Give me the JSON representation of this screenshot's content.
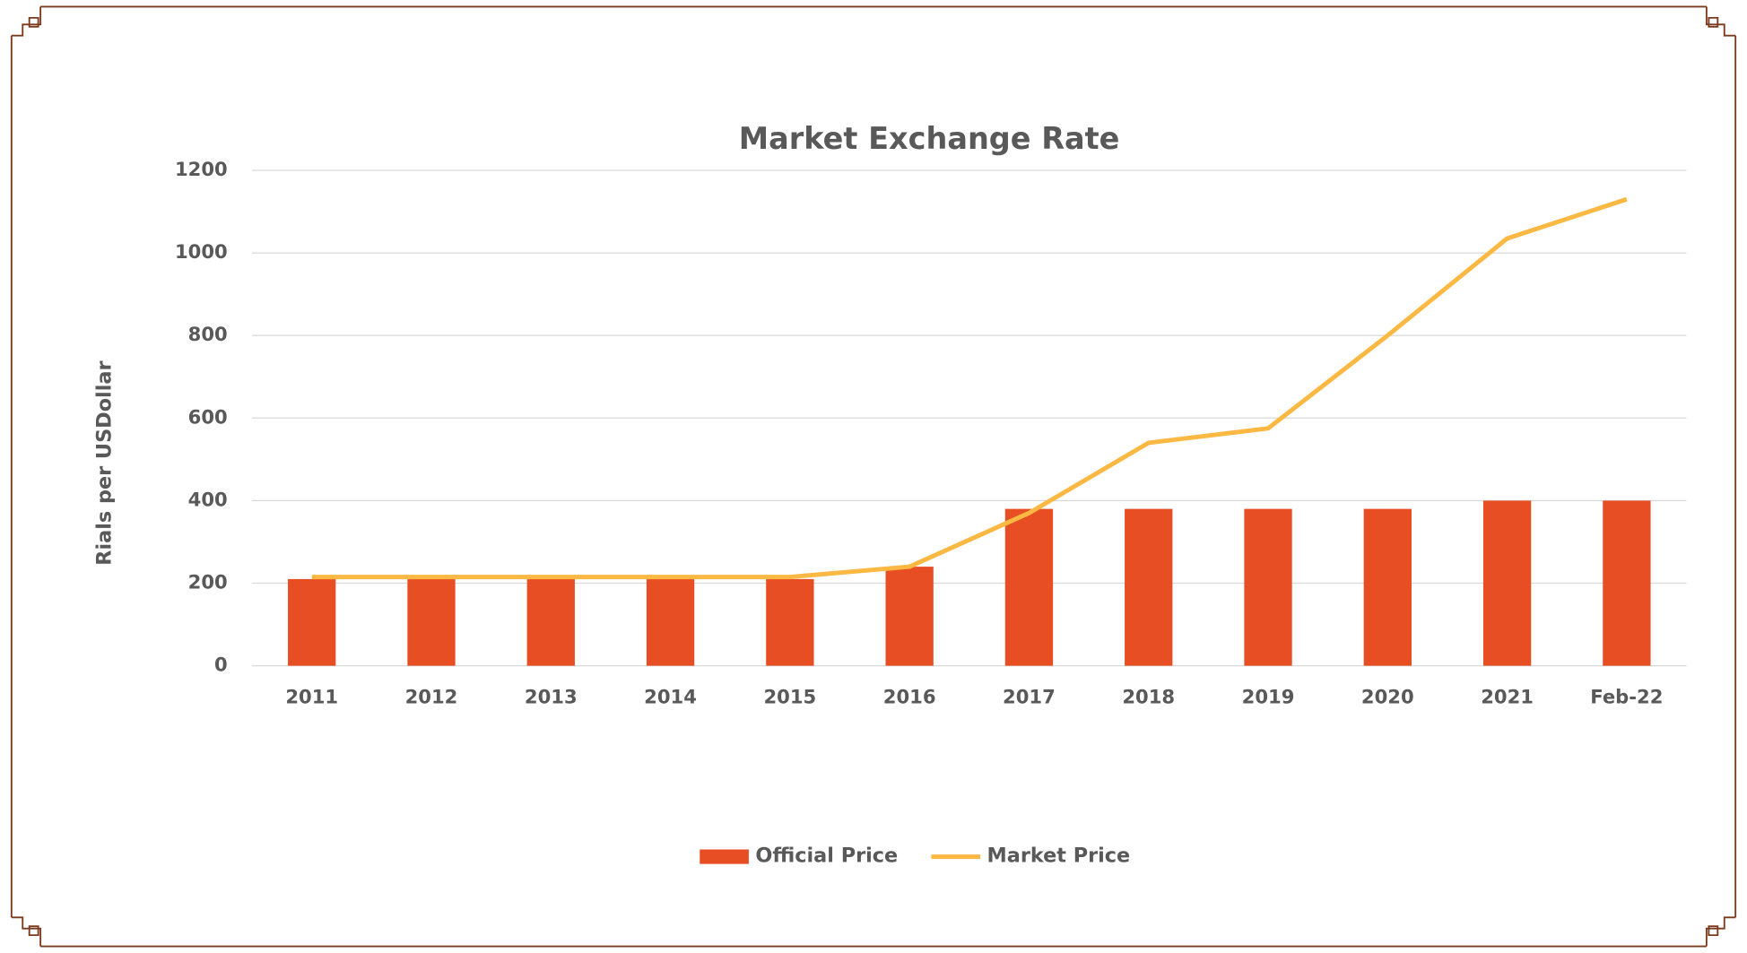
{
  "chart_data": {
    "type": "bar_line",
    "title": "Market Exchange Rate",
    "y_label": "Rials per USDollar",
    "categories": [
      "2011",
      "2012",
      "2013",
      "2014",
      "2015",
      "2016",
      "2017",
      "2018",
      "2019",
      "2020",
      "2021",
      "Feb-22"
    ],
    "series": [
      {
        "name": "Official Price",
        "type": "bar",
        "color": "#e84e24",
        "values": [
          210,
          210,
          210,
          210,
          210,
          240,
          380,
          380,
          380,
          380,
          400,
          400
        ]
      },
      {
        "name": "Market Price",
        "type": "line",
        "color": "#fbb843",
        "values": [
          215,
          215,
          215,
          215,
          215,
          240,
          370,
          540,
          575,
          800,
          1035,
          1130
        ]
      }
    ],
    "ylim": [
      0,
      1200
    ],
    "yticks": [
      0,
      200,
      400,
      600,
      800,
      1000,
      1200
    ],
    "grid": true,
    "legend": "bottom"
  }
}
